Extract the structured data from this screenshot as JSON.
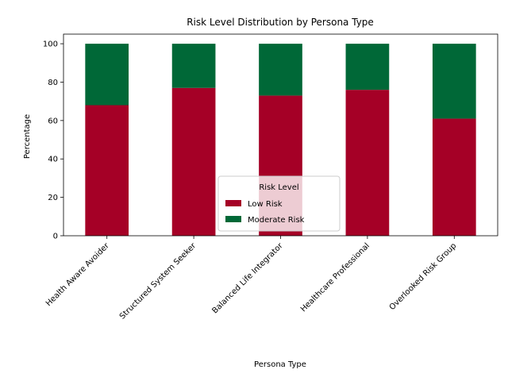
{
  "chart_data": {
    "type": "bar",
    "stacked": true,
    "title": "Risk Level Distribution by Persona Type",
    "xlabel": "Persona Type",
    "ylabel": "Percentage",
    "ylim": [
      0,
      105
    ],
    "yticks": [
      "0",
      "20",
      "40",
      "60",
      "80",
      "100"
    ],
    "categories": [
      "Health Aware Avoider",
      "Structured System Seeker",
      "Balanced Life Integrator",
      "Healthcare Professional",
      "Overlooked Risk Group"
    ],
    "series": [
      {
        "name": "Low Risk",
        "color": "#a50026",
        "values": [
          68,
          77,
          73,
          76,
          61
        ]
      },
      {
        "name": "Moderate Risk",
        "color": "#006837",
        "values": [
          32,
          23,
          27,
          24,
          39
        ]
      }
    ],
    "legend": {
      "title": "Risk Level",
      "position": "lower-center"
    },
    "grid": false
  }
}
